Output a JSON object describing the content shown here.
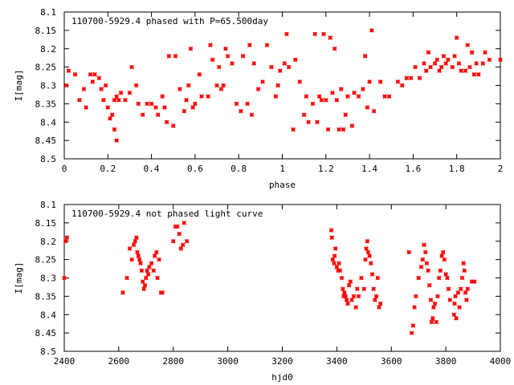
{
  "chart_data": [
    {
      "type": "scatter",
      "title": "110700-5929.4 phased with P=65.500day",
      "xlabel": "phase",
      "ylabel": "I[mag]",
      "xlim": [
        0,
        2
      ],
      "ylim": [
        8.1,
        8.5
      ],
      "y_inverted": true,
      "x_ticks": [
        0,
        0.2,
        0.4,
        0.6,
        0.8,
        1,
        1.2,
        1.4,
        1.6,
        1.8,
        2
      ],
      "x_tick_labels": [
        "0",
        "0.2",
        "0.4",
        "0.6",
        "0.8",
        "1",
        "1.2",
        "1.4",
        "1.6",
        "1.8",
        "2"
      ],
      "y_ticks": [
        8.1,
        8.15,
        8.2,
        8.25,
        8.3,
        8.35,
        8.4,
        8.45,
        8.5
      ],
      "y_tick_labels": [
        "8.1",
        "8.15",
        "8.2",
        "8.25",
        "8.3",
        "8.35",
        "8.4",
        "8.45",
        "8.5"
      ],
      "grid": false,
      "marker_color": "#ff0000",
      "series": [
        {
          "points": [
            [
              0.01,
              8.3
            ],
            [
              0.02,
              8.26
            ],
            [
              0.05,
              8.27
            ],
            [
              0.07,
              8.34
            ],
            [
              0.09,
              8.31
            ],
            [
              0.1,
              8.36
            ],
            [
              0.12,
              8.27
            ],
            [
              0.13,
              8.29
            ],
            [
              0.14,
              8.27
            ],
            [
              0.16,
              8.28
            ],
            [
              0.17,
              8.31
            ],
            [
              0.18,
              8.34
            ],
            [
              0.19,
              8.3
            ],
            [
              0.2,
              8.36
            ],
            [
              0.21,
              8.39
            ],
            [
              0.22,
              8.38
            ],
            [
              0.23,
              8.34
            ],
            [
              0.23,
              8.42
            ],
            [
              0.24,
              8.45
            ],
            [
              0.24,
              8.33
            ],
            [
              0.25,
              8.34
            ],
            [
              0.26,
              8.32
            ],
            [
              0.28,
              8.34
            ],
            [
              0.3,
              8.32
            ],
            [
              0.31,
              8.25
            ],
            [
              0.33,
              8.3
            ],
            [
              0.34,
              8.35
            ],
            [
              0.36,
              8.38
            ],
            [
              0.38,
              8.35
            ],
            [
              0.4,
              8.35
            ],
            [
              0.42,
              8.36
            ],
            [
              0.43,
              8.38
            ],
            [
              0.45,
              8.33
            ],
            [
              0.46,
              8.36
            ],
            [
              0.47,
              8.4
            ],
            [
              0.48,
              8.22
            ],
            [
              0.5,
              8.41
            ],
            [
              0.51,
              8.22
            ],
            [
              0.53,
              8.31
            ],
            [
              0.55,
              8.37
            ],
            [
              0.56,
              8.34
            ],
            [
              0.57,
              8.3
            ],
            [
              0.58,
              8.2
            ],
            [
              0.59,
              8.36
            ],
            [
              0.6,
              8.35
            ],
            [
              0.62,
              8.27
            ],
            [
              0.63,
              8.33
            ],
            [
              0.66,
              8.33
            ],
            [
              0.67,
              8.19
            ],
            [
              0.68,
              8.23
            ],
            [
              0.7,
              8.3
            ],
            [
              0.71,
              8.25
            ],
            [
              0.72,
              8.31
            ],
            [
              0.73,
              8.3
            ],
            [
              0.74,
              8.2
            ],
            [
              0.75,
              8.22
            ],
            [
              0.77,
              8.24
            ],
            [
              0.79,
              8.35
            ],
            [
              0.81,
              8.37
            ],
            [
              0.82,
              8.22
            ],
            [
              0.84,
              8.35
            ],
            [
              0.85,
              8.19
            ],
            [
              0.86,
              8.38
            ],
            [
              0.87,
              8.24
            ],
            [
              0.89,
              8.31
            ],
            [
              0.91,
              8.29
            ],
            [
              0.93,
              8.19
            ],
            [
              0.95,
              8.25
            ],
            [
              0.97,
              8.33
            ],
            [
              0.98,
              8.3
            ],
            [
              0.99,
              8.26
            ],
            [
              1.01,
              8.24
            ],
            [
              1.02,
              8.16
            ],
            [
              1.03,
              8.25
            ],
            [
              1.05,
              8.42
            ],
            [
              1.06,
              8.23
            ],
            [
              1.08,
              8.29
            ],
            [
              1.1,
              8.38
            ],
            [
              1.11,
              8.33
            ],
            [
              1.12,
              8.4
            ],
            [
              1.14,
              8.35
            ],
            [
              1.15,
              8.16
            ],
            [
              1.16,
              8.4
            ],
            [
              1.17,
              8.33
            ],
            [
              1.18,
              8.34
            ],
            [
              1.19,
              8.16
            ],
            [
              1.2,
              8.34
            ],
            [
              1.21,
              8.42
            ],
            [
              1.22,
              8.17
            ],
            [
              1.23,
              8.32
            ],
            [
              1.24,
              8.2
            ],
            [
              1.25,
              8.34
            ],
            [
              1.26,
              8.42
            ],
            [
              1.27,
              8.31
            ],
            [
              1.28,
              8.42
            ],
            [
              1.29,
              8.38
            ],
            [
              1.3,
              8.33
            ],
            [
              1.32,
              8.41
            ],
            [
              1.33,
              8.32
            ],
            [
              1.35,
              8.33
            ],
            [
              1.37,
              8.31
            ],
            [
              1.38,
              8.22
            ],
            [
              1.39,
              8.36
            ],
            [
              1.4,
              8.29
            ],
            [
              1.41,
              8.15
            ],
            [
              1.42,
              8.37
            ],
            [
              1.45,
              8.29
            ],
            [
              1.47,
              8.33
            ],
            [
              1.49,
              8.33
            ],
            [
              1.53,
              8.29
            ],
            [
              1.55,
              8.3
            ],
            [
              1.57,
              8.28
            ],
            [
              1.59,
              8.28
            ],
            [
              1.61,
              8.25
            ],
            [
              1.63,
              8.28
            ],
            [
              1.65,
              8.24
            ],
            [
              1.66,
              8.26
            ],
            [
              1.67,
              8.21
            ],
            [
              1.68,
              8.25
            ],
            [
              1.7,
              8.24
            ],
            [
              1.71,
              8.23
            ],
            [
              1.72,
              8.26
            ],
            [
              1.73,
              8.25
            ],
            [
              1.74,
              8.22
            ],
            [
              1.75,
              8.24
            ],
            [
              1.76,
              8.23
            ],
            [
              1.78,
              8.25
            ],
            [
              1.79,
              8.22
            ],
            [
              1.8,
              8.17
            ],
            [
              1.81,
              8.24
            ],
            [
              1.82,
              8.26
            ],
            [
              1.84,
              8.26
            ],
            [
              1.85,
              8.19
            ],
            [
              1.86,
              8.25
            ],
            [
              1.87,
              8.21
            ],
            [
              1.88,
              8.27
            ],
            [
              1.89,
              8.24
            ],
            [
              1.9,
              8.27
            ],
            [
              1.92,
              8.24
            ],
            [
              1.93,
              8.21
            ],
            [
              1.95,
              8.23
            ],
            [
              2.0,
              8.23
            ]
          ]
        }
      ]
    },
    {
      "type": "scatter",
      "title": "110700-5929.4 not phased light curve",
      "xlabel": "hjd0",
      "ylabel": "I[mag]",
      "xlim": [
        2400,
        4000
      ],
      "ylim": [
        8.1,
        8.5
      ],
      "y_inverted": true,
      "x_ticks": [
        2400,
        2600,
        2800,
        3000,
        3200,
        3400,
        3600,
        3800,
        4000
      ],
      "x_tick_labels": [
        "2400",
        "2600",
        "2800",
        "3000",
        "3200",
        "3400",
        "3600",
        "3800",
        "4000"
      ],
      "y_ticks": [
        8.1,
        8.15,
        8.2,
        8.25,
        8.3,
        8.35,
        8.4,
        8.45,
        8.5
      ],
      "y_tick_labels": [
        "8.1",
        "8.15",
        "8.2",
        "8.25",
        "8.3",
        "8.35",
        "8.4",
        "8.45",
        "8.5"
      ],
      "grid": false,
      "marker_color": "#ff0000",
      "series": [
        {
          "points": [
            [
              2400,
              8.3
            ],
            [
              2405,
              8.2
            ],
            [
              2410,
              8.19
            ],
            [
              2615,
              8.34
            ],
            [
              2630,
              8.3
            ],
            [
              2640,
              8.22
            ],
            [
              2648,
              8.25
            ],
            [
              2655,
              8.21
            ],
            [
              2660,
              8.2
            ],
            [
              2665,
              8.19
            ],
            [
              2668,
              8.23
            ],
            [
              2672,
              8.24
            ],
            [
              2676,
              8.25
            ],
            [
              2680,
              8.26
            ],
            [
              2684,
              8.28
            ],
            [
              2688,
              8.31
            ],
            [
              2692,
              8.33
            ],
            [
              2696,
              8.32
            ],
            [
              2700,
              8.3
            ],
            [
              2704,
              8.28
            ],
            [
              2708,
              8.29
            ],
            [
              2712,
              8.27
            ],
            [
              2720,
              8.26
            ],
            [
              2728,
              8.28
            ],
            [
              2732,
              8.24
            ],
            [
              2738,
              8.23
            ],
            [
              2742,
              8.3
            ],
            [
              2748,
              8.25
            ],
            [
              2755,
              8.34
            ],
            [
              2760,
              8.34
            ],
            [
              2800,
              8.2
            ],
            [
              2808,
              8.16
            ],
            [
              2815,
              8.16
            ],
            [
              2822,
              8.18
            ],
            [
              2828,
              8.22
            ],
            [
              2835,
              8.21
            ],
            [
              2840,
              8.15
            ],
            [
              2850,
              8.2
            ],
            [
              3380,
              8.17
            ],
            [
              3382,
              8.19
            ],
            [
              3385,
              8.25
            ],
            [
              3390,
              8.26
            ],
            [
              3392,
              8.24
            ],
            [
              3395,
              8.22
            ],
            [
              3400,
              8.27
            ],
            [
              3405,
              8.28
            ],
            [
              3408,
              8.26
            ],
            [
              3412,
              8.28
            ],
            [
              3418,
              8.3
            ],
            [
              3422,
              8.33
            ],
            [
              3425,
              8.35
            ],
            [
              3428,
              8.34
            ],
            [
              3432,
              8.35
            ],
            [
              3436,
              8.36
            ],
            [
              3440,
              8.37
            ],
            [
              3445,
              8.32
            ],
            [
              3450,
              8.31
            ],
            [
              3455,
              8.36
            ],
            [
              3462,
              8.35
            ],
            [
              3470,
              8.38
            ],
            [
              3475,
              8.33
            ],
            [
              3480,
              8.35
            ],
            [
              3490,
              8.3
            ],
            [
              3500,
              8.33
            ],
            [
              3505,
              8.25
            ],
            [
              3508,
              8.22
            ],
            [
              3512,
              8.2
            ],
            [
              3515,
              8.23
            ],
            [
              3520,
              8.24
            ],
            [
              3525,
              8.26
            ],
            [
              3530,
              8.29
            ],
            [
              3535,
              8.33
            ],
            [
              3540,
              8.36
            ],
            [
              3545,
              8.35
            ],
            [
              3550,
              8.3
            ],
            [
              3555,
              8.38
            ],
            [
              3560,
              8.37
            ],
            [
              3665,
              8.23
            ],
            [
              3675,
              8.45
            ],
            [
              3680,
              8.43
            ],
            [
              3685,
              8.38
            ],
            [
              3690,
              8.35
            ],
            [
              3700,
              8.3
            ],
            [
              3710,
              8.27
            ],
            [
              3715,
              8.25
            ],
            [
              3720,
              8.21
            ],
            [
              3725,
              8.23
            ],
            [
              3730,
              8.26
            ],
            [
              3735,
              8.28
            ],
            [
              3740,
              8.32
            ],
            [
              3745,
              8.36
            ],
            [
              3748,
              8.42
            ],
            [
              3752,
              8.41
            ],
            [
              3755,
              8.38
            ],
            [
              3760,
              8.37
            ],
            [
              3765,
              8.42
            ],
            [
              3770,
              8.35
            ],
            [
              3775,
              8.3
            ],
            [
              3780,
              8.28
            ],
            [
              3785,
              8.24
            ],
            [
              3790,
              8.23
            ],
            [
              3795,
              8.25
            ],
            [
              3800,
              8.29
            ],
            [
              3805,
              8.3
            ],
            [
              3810,
              8.33
            ],
            [
              3815,
              8.36
            ],
            [
              3830,
              8.4
            ],
            [
              3832,
              8.37
            ],
            [
              3835,
              8.35
            ],
            [
              3838,
              8.41
            ],
            [
              3845,
              8.34
            ],
            [
              3850,
              8.38
            ],
            [
              3855,
              8.33
            ],
            [
              3860,
              8.3
            ],
            [
              3865,
              8.26
            ],
            [
              3868,
              8.28
            ],
            [
              3872,
              8.34
            ],
            [
              3876,
              8.36
            ],
            [
              3880,
              8.33
            ],
            [
              3895,
              8.31
            ],
            [
              3905,
              8.31
            ]
          ]
        }
      ]
    }
  ]
}
